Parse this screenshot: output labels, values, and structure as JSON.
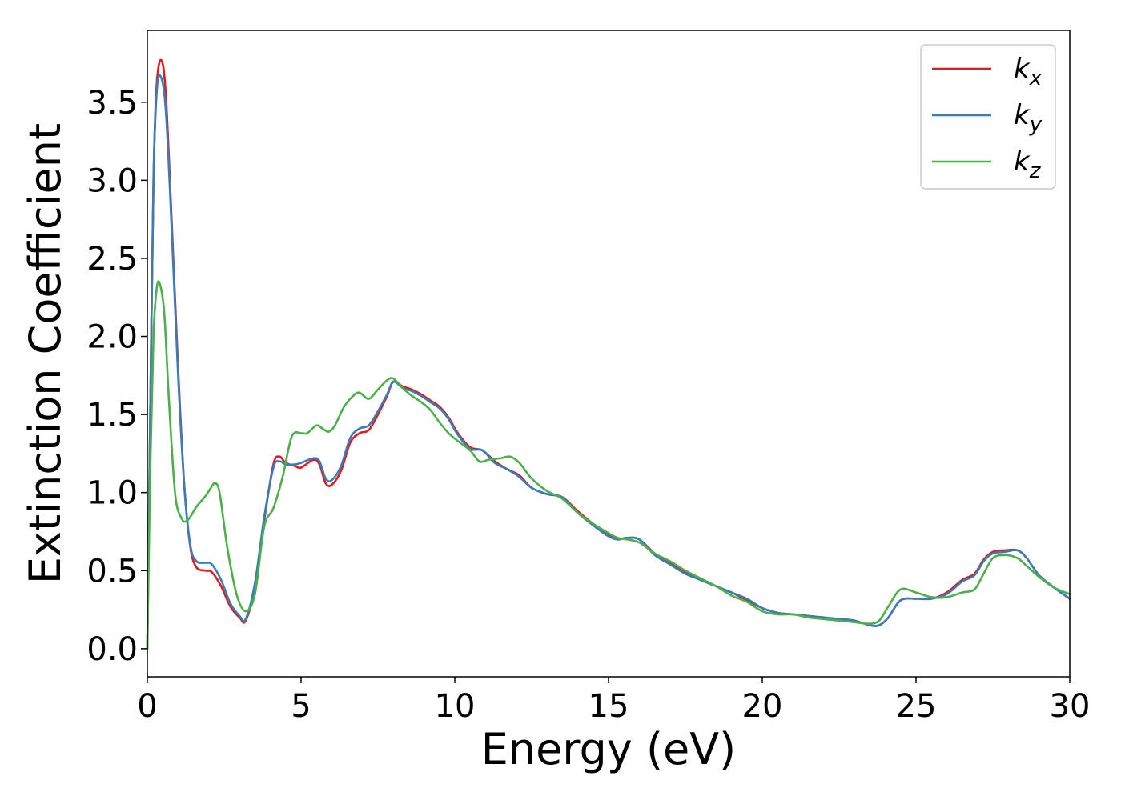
{
  "chart_data": {
    "type": "line",
    "xlabel": "Energy (eV)",
    "ylabel": "Extinction Coefficient",
    "xlim": [
      0,
      30
    ],
    "ylim": [
      -0.18,
      3.96
    ],
    "grid": false,
    "legend_position": "top-right",
    "xticks": [
      "0",
      "5",
      "10",
      "15",
      "20",
      "25",
      "30"
    ],
    "yticks": [
      "0.0",
      "0.5",
      "1.0",
      "1.5",
      "2.0",
      "2.5",
      "3.0",
      "3.5"
    ],
    "series": [
      {
        "name": "kx",
        "label_base": "k",
        "label_sub": "x",
        "color": "#e41a1c",
        "points": [
          [
            0,
            0.0
          ],
          [
            0.1,
            1.6
          ],
          [
            0.2,
            3.0
          ],
          [
            0.3,
            3.6
          ],
          [
            0.45,
            3.77
          ],
          [
            0.6,
            3.55
          ],
          [
            0.8,
            2.7
          ],
          [
            1.0,
            1.8
          ],
          [
            1.2,
            1.05
          ],
          [
            1.4,
            0.65
          ],
          [
            1.6,
            0.52
          ],
          [
            1.9,
            0.5
          ],
          [
            2.1,
            0.49
          ],
          [
            2.4,
            0.4
          ],
          [
            2.7,
            0.27
          ],
          [
            3.0,
            0.2
          ],
          [
            3.2,
            0.18
          ],
          [
            3.5,
            0.4
          ],
          [
            3.8,
            0.82
          ],
          [
            4.1,
            1.18
          ],
          [
            4.3,
            1.23
          ],
          [
            4.5,
            1.19
          ],
          [
            4.8,
            1.17
          ],
          [
            5.0,
            1.16
          ],
          [
            5.4,
            1.21
          ],
          [
            5.6,
            1.18
          ],
          [
            5.8,
            1.06
          ],
          [
            6.0,
            1.05
          ],
          [
            6.3,
            1.14
          ],
          [
            6.6,
            1.32
          ],
          [
            6.9,
            1.38
          ],
          [
            7.2,
            1.4
          ],
          [
            7.5,
            1.5
          ],
          [
            7.8,
            1.62
          ],
          [
            8.0,
            1.71
          ],
          [
            8.3,
            1.68
          ],
          [
            8.6,
            1.66
          ],
          [
            8.9,
            1.63
          ],
          [
            9.2,
            1.59
          ],
          [
            9.5,
            1.55
          ],
          [
            9.8,
            1.48
          ],
          [
            10.1,
            1.38
          ],
          [
            10.5,
            1.29
          ],
          [
            10.9,
            1.27
          ],
          [
            11.3,
            1.2
          ],
          [
            11.7,
            1.15
          ],
          [
            12.1,
            1.11
          ],
          [
            12.5,
            1.03
          ],
          [
            13.0,
            0.99
          ],
          [
            13.5,
            0.97
          ],
          [
            14.0,
            0.88
          ],
          [
            14.5,
            0.8
          ],
          [
            15.0,
            0.73
          ],
          [
            15.3,
            0.7
          ],
          [
            15.6,
            0.71
          ],
          [
            16.0,
            0.7
          ],
          [
            16.5,
            0.61
          ],
          [
            17.0,
            0.55
          ],
          [
            17.5,
            0.49
          ],
          [
            18.0,
            0.44
          ],
          [
            18.5,
            0.4
          ],
          [
            19.0,
            0.36
          ],
          [
            19.5,
            0.31
          ],
          [
            20.0,
            0.26
          ],
          [
            20.5,
            0.23
          ],
          [
            21.0,
            0.22
          ],
          [
            21.5,
            0.21
          ],
          [
            22.0,
            0.2
          ],
          [
            22.5,
            0.19
          ],
          [
            23.0,
            0.18
          ],
          [
            23.5,
            0.15
          ],
          [
            23.8,
            0.15
          ],
          [
            24.1,
            0.2
          ],
          [
            24.5,
            0.31
          ],
          [
            25.0,
            0.32
          ],
          [
            25.5,
            0.32
          ],
          [
            26.0,
            0.36
          ],
          [
            26.5,
            0.44
          ],
          [
            26.9,
            0.48
          ],
          [
            27.2,
            0.57
          ],
          [
            27.5,
            0.62
          ],
          [
            27.9,
            0.63
          ],
          [
            28.3,
            0.63
          ],
          [
            28.6,
            0.58
          ],
          [
            29.0,
            0.47
          ],
          [
            29.5,
            0.39
          ],
          [
            30.0,
            0.32
          ]
        ]
      },
      {
        "name": "ky",
        "label_base": "k",
        "label_sub": "y",
        "color": "#377eb8",
        "points": [
          [
            0,
            0.0
          ],
          [
            0.1,
            1.6
          ],
          [
            0.2,
            3.0
          ],
          [
            0.3,
            3.55
          ],
          [
            0.42,
            3.67
          ],
          [
            0.6,
            3.45
          ],
          [
            0.8,
            2.65
          ],
          [
            1.0,
            1.75
          ],
          [
            1.2,
            1.05
          ],
          [
            1.4,
            0.66
          ],
          [
            1.6,
            0.56
          ],
          [
            1.9,
            0.55
          ],
          [
            2.1,
            0.54
          ],
          [
            2.4,
            0.44
          ],
          [
            2.7,
            0.29
          ],
          [
            3.0,
            0.21
          ],
          [
            3.2,
            0.19
          ],
          [
            3.5,
            0.42
          ],
          [
            3.8,
            0.84
          ],
          [
            4.1,
            1.16
          ],
          [
            4.3,
            1.2
          ],
          [
            4.5,
            1.18
          ],
          [
            4.8,
            1.18
          ],
          [
            5.0,
            1.19
          ],
          [
            5.4,
            1.22
          ],
          [
            5.6,
            1.2
          ],
          [
            5.8,
            1.09
          ],
          [
            6.0,
            1.08
          ],
          [
            6.3,
            1.17
          ],
          [
            6.6,
            1.35
          ],
          [
            6.9,
            1.41
          ],
          [
            7.2,
            1.43
          ],
          [
            7.5,
            1.52
          ],
          [
            7.8,
            1.63
          ],
          [
            8.0,
            1.71
          ],
          [
            8.3,
            1.67
          ],
          [
            8.6,
            1.65
          ],
          [
            8.9,
            1.62
          ],
          [
            9.2,
            1.58
          ],
          [
            9.5,
            1.54
          ],
          [
            9.8,
            1.47
          ],
          [
            10.1,
            1.37
          ],
          [
            10.5,
            1.28
          ],
          [
            10.9,
            1.27
          ],
          [
            11.3,
            1.19
          ],
          [
            11.7,
            1.15
          ],
          [
            12.1,
            1.1
          ],
          [
            12.5,
            1.03
          ],
          [
            13.0,
            0.99
          ],
          [
            13.5,
            0.97
          ],
          [
            14.0,
            0.87
          ],
          [
            14.5,
            0.79
          ],
          [
            15.0,
            0.72
          ],
          [
            15.3,
            0.7
          ],
          [
            15.6,
            0.71
          ],
          [
            16.0,
            0.7
          ],
          [
            16.5,
            0.6
          ],
          [
            17.0,
            0.54
          ],
          [
            17.5,
            0.48
          ],
          [
            18.0,
            0.44
          ],
          [
            18.5,
            0.4
          ],
          [
            19.0,
            0.36
          ],
          [
            19.5,
            0.32
          ],
          [
            20.0,
            0.26
          ],
          [
            20.5,
            0.23
          ],
          [
            21.0,
            0.22
          ],
          [
            21.5,
            0.21
          ],
          [
            22.0,
            0.2
          ],
          [
            22.5,
            0.19
          ],
          [
            23.0,
            0.18
          ],
          [
            23.5,
            0.15
          ],
          [
            23.8,
            0.15
          ],
          [
            24.1,
            0.2
          ],
          [
            24.5,
            0.31
          ],
          [
            25.0,
            0.32
          ],
          [
            25.5,
            0.32
          ],
          [
            26.0,
            0.35
          ],
          [
            26.5,
            0.43
          ],
          [
            26.9,
            0.47
          ],
          [
            27.2,
            0.56
          ],
          [
            27.5,
            0.61
          ],
          [
            27.9,
            0.62
          ],
          [
            28.3,
            0.63
          ],
          [
            28.6,
            0.58
          ],
          [
            29.0,
            0.47
          ],
          [
            29.5,
            0.39
          ],
          [
            30.0,
            0.32
          ]
        ]
      },
      {
        "name": "kz",
        "label_base": "k",
        "label_sub": "z",
        "color": "#4daf4a",
        "points": [
          [
            0,
            0.0
          ],
          [
            0.1,
            1.2
          ],
          [
            0.2,
            2.0
          ],
          [
            0.3,
            2.3
          ],
          [
            0.4,
            2.34
          ],
          [
            0.55,
            2.15
          ],
          [
            0.7,
            1.6
          ],
          [
            0.9,
            1.0
          ],
          [
            1.1,
            0.84
          ],
          [
            1.3,
            0.82
          ],
          [
            1.6,
            0.91
          ],
          [
            1.9,
            0.98
          ],
          [
            2.1,
            1.04
          ],
          [
            2.2,
            1.06
          ],
          [
            2.35,
            1.0
          ],
          [
            2.6,
            0.65
          ],
          [
            2.9,
            0.35
          ],
          [
            3.2,
            0.24
          ],
          [
            3.5,
            0.35
          ],
          [
            3.8,
            0.78
          ],
          [
            4.1,
            0.9
          ],
          [
            4.4,
            1.1
          ],
          [
            4.7,
            1.36
          ],
          [
            5.0,
            1.38
          ],
          [
            5.2,
            1.38
          ],
          [
            5.5,
            1.43
          ],
          [
            5.7,
            1.41
          ],
          [
            5.9,
            1.39
          ],
          [
            6.1,
            1.43
          ],
          [
            6.4,
            1.55
          ],
          [
            6.7,
            1.62
          ],
          [
            6.9,
            1.64
          ],
          [
            7.2,
            1.6
          ],
          [
            7.5,
            1.66
          ],
          [
            7.8,
            1.72
          ],
          [
            8.0,
            1.73
          ],
          [
            8.3,
            1.67
          ],
          [
            8.6,
            1.62
          ],
          [
            8.9,
            1.58
          ],
          [
            9.2,
            1.53
          ],
          [
            9.5,
            1.45
          ],
          [
            9.8,
            1.38
          ],
          [
            10.1,
            1.33
          ],
          [
            10.5,
            1.27
          ],
          [
            10.8,
            1.2
          ],
          [
            11.1,
            1.21
          ],
          [
            11.5,
            1.22
          ],
          [
            11.8,
            1.23
          ],
          [
            12.1,
            1.19
          ],
          [
            12.5,
            1.09
          ],
          [
            13.0,
            1.01
          ],
          [
            13.5,
            0.96
          ],
          [
            14.0,
            0.87
          ],
          [
            14.5,
            0.8
          ],
          [
            15.0,
            0.74
          ],
          [
            15.3,
            0.71
          ],
          [
            15.6,
            0.7
          ],
          [
            16.0,
            0.68
          ],
          [
            16.5,
            0.61
          ],
          [
            17.0,
            0.56
          ],
          [
            17.5,
            0.5
          ],
          [
            18.0,
            0.45
          ],
          [
            18.5,
            0.4
          ],
          [
            19.0,
            0.34
          ],
          [
            19.5,
            0.3
          ],
          [
            20.0,
            0.24
          ],
          [
            20.5,
            0.22
          ],
          [
            21.0,
            0.22
          ],
          [
            21.5,
            0.2
          ],
          [
            22.0,
            0.19
          ],
          [
            22.5,
            0.18
          ],
          [
            23.0,
            0.17
          ],
          [
            23.5,
            0.16
          ],
          [
            23.8,
            0.18
          ],
          [
            24.1,
            0.27
          ],
          [
            24.5,
            0.38
          ],
          [
            25.0,
            0.36
          ],
          [
            25.5,
            0.33
          ],
          [
            26.0,
            0.33
          ],
          [
            26.5,
            0.36
          ],
          [
            26.9,
            0.38
          ],
          [
            27.2,
            0.48
          ],
          [
            27.5,
            0.58
          ],
          [
            27.9,
            0.6
          ],
          [
            28.3,
            0.58
          ],
          [
            28.6,
            0.53
          ],
          [
            29.0,
            0.46
          ],
          [
            29.5,
            0.39
          ],
          [
            30.0,
            0.35
          ]
        ]
      }
    ]
  }
}
